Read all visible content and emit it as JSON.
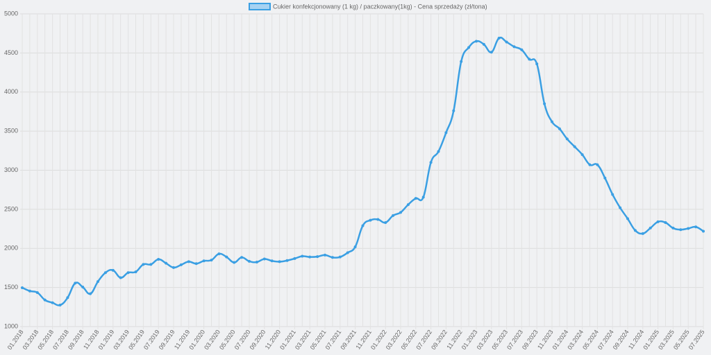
{
  "chart_data": {
    "type": "line",
    "categories": [
      "01.2018",
      null,
      "03.2018",
      null,
      "05.2018",
      null,
      "07.2018",
      null,
      "09.2018",
      null,
      "11.2018",
      null,
      "01.2019",
      null,
      "03.2019",
      null,
      "05.2019",
      null,
      "07.2019",
      null,
      "09.2019",
      null,
      "11.2019",
      null,
      "01.2020",
      null,
      "03.2020",
      null,
      "05.2020",
      null,
      "07.2020",
      null,
      "09.2020",
      null,
      "11.2020",
      null,
      "01.2021",
      null,
      "03.2021",
      null,
      "05.2021",
      null,
      "07.2021",
      null,
      "09.2021",
      null,
      "11.2021",
      null,
      "01.2022",
      null,
      "03.2022",
      null,
      "05.2022",
      null,
      "07.2022",
      null,
      "09.2022",
      null,
      "11.2022",
      null,
      "01.2023",
      null,
      "03.2023",
      null,
      "05.2023",
      null,
      "07.2023",
      null,
      "09.2023",
      null,
      "11.2023",
      null,
      "01.2024",
      null,
      "03.2024",
      null,
      "05.2024",
      null,
      "07.2024",
      null,
      "09.2024",
      null,
      "11.2024",
      null,
      "01.2025",
      null,
      "03.2025",
      null,
      "05.2025",
      null,
      "07.2025"
    ],
    "series": [
      {
        "name": "Cukier konfekcjonowany (1 kg) / paczkowany(1kg) - Cena sprzedaży (zł/tona)",
        "color": "#3a9fe3",
        "values": [
          1497,
          1455,
          1435,
          1340,
          1305,
          1275,
          1370,
          1555,
          1505,
          1420,
          1575,
          1690,
          1720,
          1625,
          1690,
          1700,
          1795,
          1795,
          1860,
          1810,
          1755,
          1790,
          1830,
          1805,
          1840,
          1850,
          1930,
          1890,
          1820,
          1885,
          1835,
          1825,
          1865,
          1840,
          1830,
          1845,
          1870,
          1900,
          1890,
          1895,
          1915,
          1885,
          1890,
          1945,
          2020,
          2290,
          2360,
          2370,
          2330,
          2420,
          2460,
          2560,
          2640,
          2655,
          3100,
          3240,
          3480,
          3760,
          4390,
          4570,
          4650,
          4610,
          4510,
          4690,
          4640,
          4580,
          4540,
          4420,
          4360,
          3850,
          3620,
          3530,
          3400,
          3300,
          3200,
          3070,
          3070,
          2900,
          2690,
          2520,
          2380,
          2230,
          2190,
          2260,
          2340,
          2330,
          2260,
          2240,
          2255,
          2275,
          2220
        ]
      }
    ],
    "ylim": [
      1000,
      5000
    ],
    "yticks": [
      1000,
      1500,
      2000,
      2500,
      3000,
      3500,
      4000,
      4500,
      5000
    ],
    "grid": true
  }
}
